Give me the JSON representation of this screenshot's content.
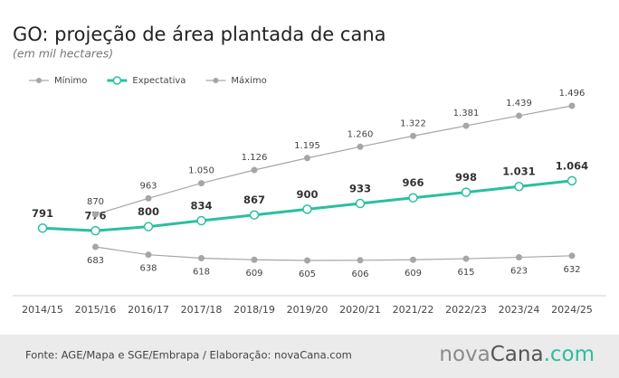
{
  "chart_data": {
    "type": "line",
    "title": "GO: projeção de área plantada de cana",
    "subtitle": "(em mil hectares)",
    "categories": [
      "2014/15",
      "2015/16",
      "2016/17",
      "2017/18",
      "2018/19",
      "2019/20",
      "2020/21",
      "2021/22",
      "2022/23",
      "2023/24",
      "2024/25"
    ],
    "series": [
      {
        "name": "Mínimo",
        "color": "#a6a6a6",
        "values": [
          null,
          683,
          638,
          618,
          609,
          605,
          606,
          609,
          615,
          623,
          632
        ],
        "value_labels": [
          null,
          "683",
          "638",
          "618",
          "609",
          "605",
          "606",
          "609",
          "615",
          "623",
          "632"
        ]
      },
      {
        "name": "Expectativa",
        "color": "#2bbf9f",
        "values": [
          791,
          776,
          800,
          834,
          867,
          900,
          933,
          966,
          998,
          1031,
          1064
        ],
        "value_labels": [
          "791",
          "776",
          "800",
          "834",
          "867",
          "900",
          "933",
          "966",
          "998",
          "1.031",
          "1.064"
        ]
      },
      {
        "name": "Máximo",
        "color": "#a6a6a6",
        "values": [
          null,
          870,
          963,
          1050,
          1126,
          1195,
          1260,
          1322,
          1381,
          1439,
          1496
        ],
        "value_labels": [
          null,
          "870",
          "963",
          "1.050",
          "1.126",
          "1.195",
          "1.260",
          "1.322",
          "1.381",
          "1.439",
          "1.496"
        ]
      }
    ],
    "source": "Fonte: AGE/Mapa e SGE/Embrapa / Elaboração: novaCana.com",
    "logo": [
      "nova",
      "Cana",
      ".com"
    ]
  }
}
